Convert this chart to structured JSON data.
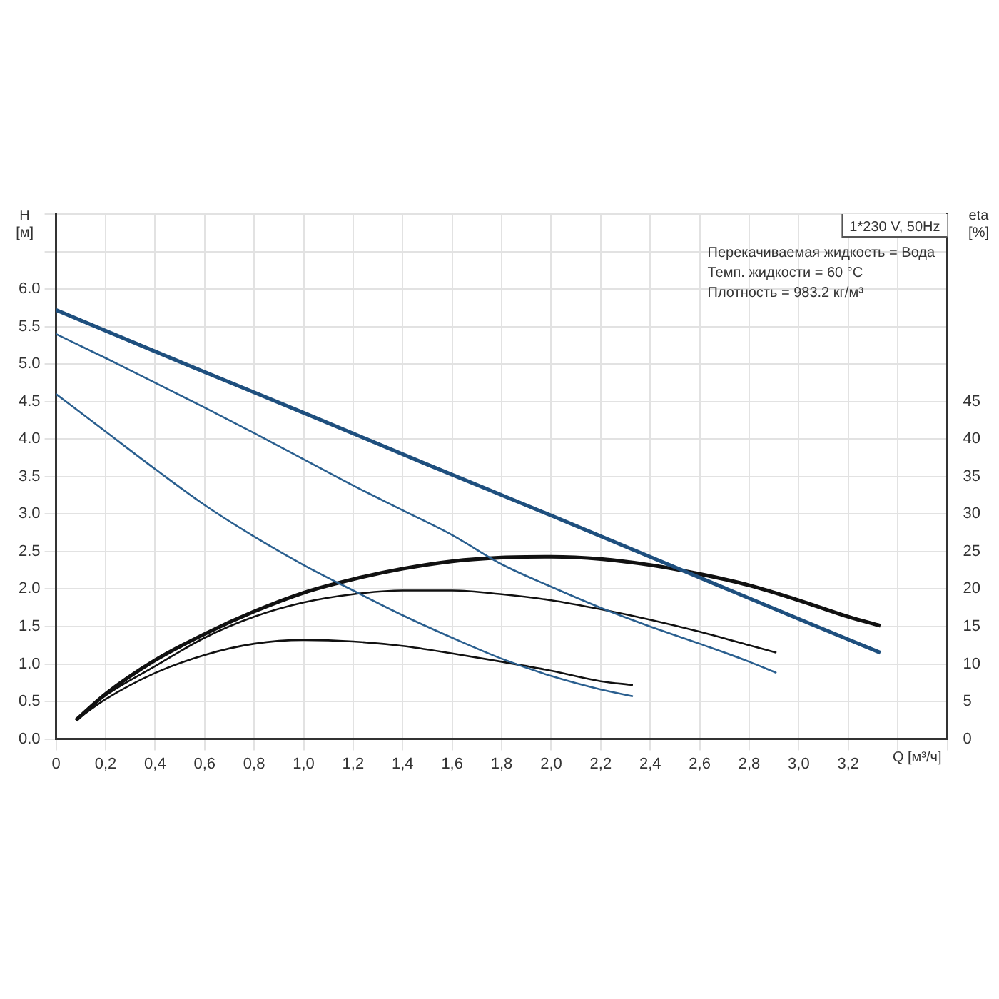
{
  "chart_data": {
    "type": "line",
    "xlabel": "Q [м³/ч]",
    "ylabel": "H [м]",
    "y2label": "eta [%]",
    "annotations": [
      "1*230 V, 50Hz",
      "Перекачиваемая жидкость = Вода",
      "Темп. жидкости = 60 °C",
      "Плотность = 983.2 кг/м³"
    ],
    "xlim": [
      0,
      3.6
    ],
    "xticks": [
      {
        "value": 0,
        "label": "0"
      },
      {
        "value": 0.2,
        "label": "0,2"
      },
      {
        "value": 0.4,
        "label": "0,4"
      },
      {
        "value": 0.6,
        "label": "0,6"
      },
      {
        "value": 0.8,
        "label": "0,8"
      },
      {
        "value": 1,
        "label": "1,0"
      },
      {
        "value": 1.2,
        "label": "1,2"
      },
      {
        "value": 1.4,
        "label": "1,4"
      },
      {
        "value": 1.6,
        "label": "1,6"
      },
      {
        "value": 1.8,
        "label": "1,8"
      },
      {
        "value": 2,
        "label": "2,0"
      },
      {
        "value": 2.2,
        "label": "2,2"
      },
      {
        "value": 2.4,
        "label": "2,4"
      },
      {
        "value": 2.6,
        "label": "2,6"
      },
      {
        "value": 2.8,
        "label": "2,8"
      },
      {
        "value": 3,
        "label": "3,0"
      },
      {
        "value": 3.2,
        "label": "3,2"
      },
      {
        "value": 3.4,
        "label": null
      },
      {
        "value": 3.6,
        "label": null
      }
    ],
    "ylim": [
      0,
      7
    ],
    "yticks": [
      {
        "value": 0,
        "label": "0.0"
      },
      0.5,
      {
        "value": 1,
        "label": "1.0"
      },
      1.5,
      {
        "value": 2,
        "label": "2.0"
      },
      2.5,
      {
        "value": 3,
        "label": "3.0"
      },
      3.5,
      {
        "value": 4,
        "label": "4.0"
      },
      4.5,
      {
        "value": 5,
        "label": "5.0"
      },
      5.5,
      {
        "value": 6,
        "label": "6.0"
      },
      {
        "value": 6.5,
        "label": null
      },
      {
        "value": 7,
        "label": null
      }
    ],
    "y2lim": [
      0,
      70
    ],
    "y2ticks": [
      0,
      5,
      10,
      15,
      20,
      25,
      30,
      35,
      40,
      45
    ],
    "grid": true,
    "legend": false,
    "marker": "none",
    "line_style": "solid",
    "series": [
      {
        "color": "#2a5f8f",
        "x": [
          0,
          0.2,
          0.4,
          0.6,
          0.8,
          1.0,
          1.2,
          1.4,
          1.6,
          1.8,
          2.0,
          2.2,
          2.33
        ],
        "values": [
          4.6,
          4.1,
          3.6,
          3.12,
          2.7,
          2.32,
          1.98,
          1.65,
          1.35,
          1.07,
          0.84,
          0.66,
          0.57
        ]
      },
      {
        "color": "#2a5f8f",
        "x": [
          0,
          0.2,
          0.4,
          0.6,
          0.8,
          1.0,
          1.2,
          1.4,
          1.6,
          1.8,
          2.0,
          2.2,
          2.4,
          2.6,
          2.8,
          2.91
        ],
        "values": [
          5.4,
          5.08,
          4.75,
          4.42,
          4.08,
          3.73,
          3.38,
          3.05,
          2.72,
          2.33,
          2.03,
          1.75,
          1.5,
          1.27,
          1.03,
          0.88
        ]
      },
      {
        "color": "#1e4f7e",
        "x": [
          0,
          0.5,
          1,
          1.5,
          2,
          2.5,
          3,
          3.33
        ],
        "values": [
          5.72,
          5.03,
          4.35,
          3.66,
          2.98,
          2.29,
          1.6,
          1.15
        ]
      },
      {
        "color": "#111111",
        "axis": "y2",
        "x": [
          0.08,
          0.2,
          0.4,
          0.6,
          0.8,
          1.0,
          1.2,
          1.4,
          1.6,
          1.8,
          2.0,
          2.2,
          2.33
        ],
        "values": [
          2.5,
          5.3,
          8.8,
          11.2,
          12.7,
          13.2,
          13,
          12.4,
          11.4,
          10.3,
          9.1,
          7.7,
          7.2
        ]
      },
      {
        "color": "#111111",
        "axis": "y2",
        "x": [
          0.08,
          0.2,
          0.4,
          0.6,
          0.8,
          1.0,
          1.2,
          1.4,
          1.6,
          1.8,
          2.0,
          2.2,
          2.4,
          2.6,
          2.8,
          2.91
        ],
        "values": [
          2.5,
          5.8,
          9.7,
          13.5,
          16.3,
          18.2,
          19.3,
          19.8,
          19.8,
          19.3,
          18.5,
          17.3,
          15.9,
          14.3,
          12.5,
          11.5
        ]
      },
      {
        "color": "#111111",
        "axis": "y2",
        "x": [
          0.08,
          0.2,
          0.4,
          0.6,
          0.8,
          1.0,
          1.2,
          1.4,
          1.6,
          1.8,
          2.0,
          2.2,
          2.4,
          2.6,
          2.8,
          3.0,
          3.2,
          3.33
        ],
        "values": [
          2.5,
          6,
          10.5,
          14,
          17,
          19.5,
          21.3,
          22.7,
          23.7,
          24.2,
          24.3,
          24,
          23.2,
          22,
          20.5,
          18.5,
          16.3,
          15.1
        ]
      }
    ]
  }
}
